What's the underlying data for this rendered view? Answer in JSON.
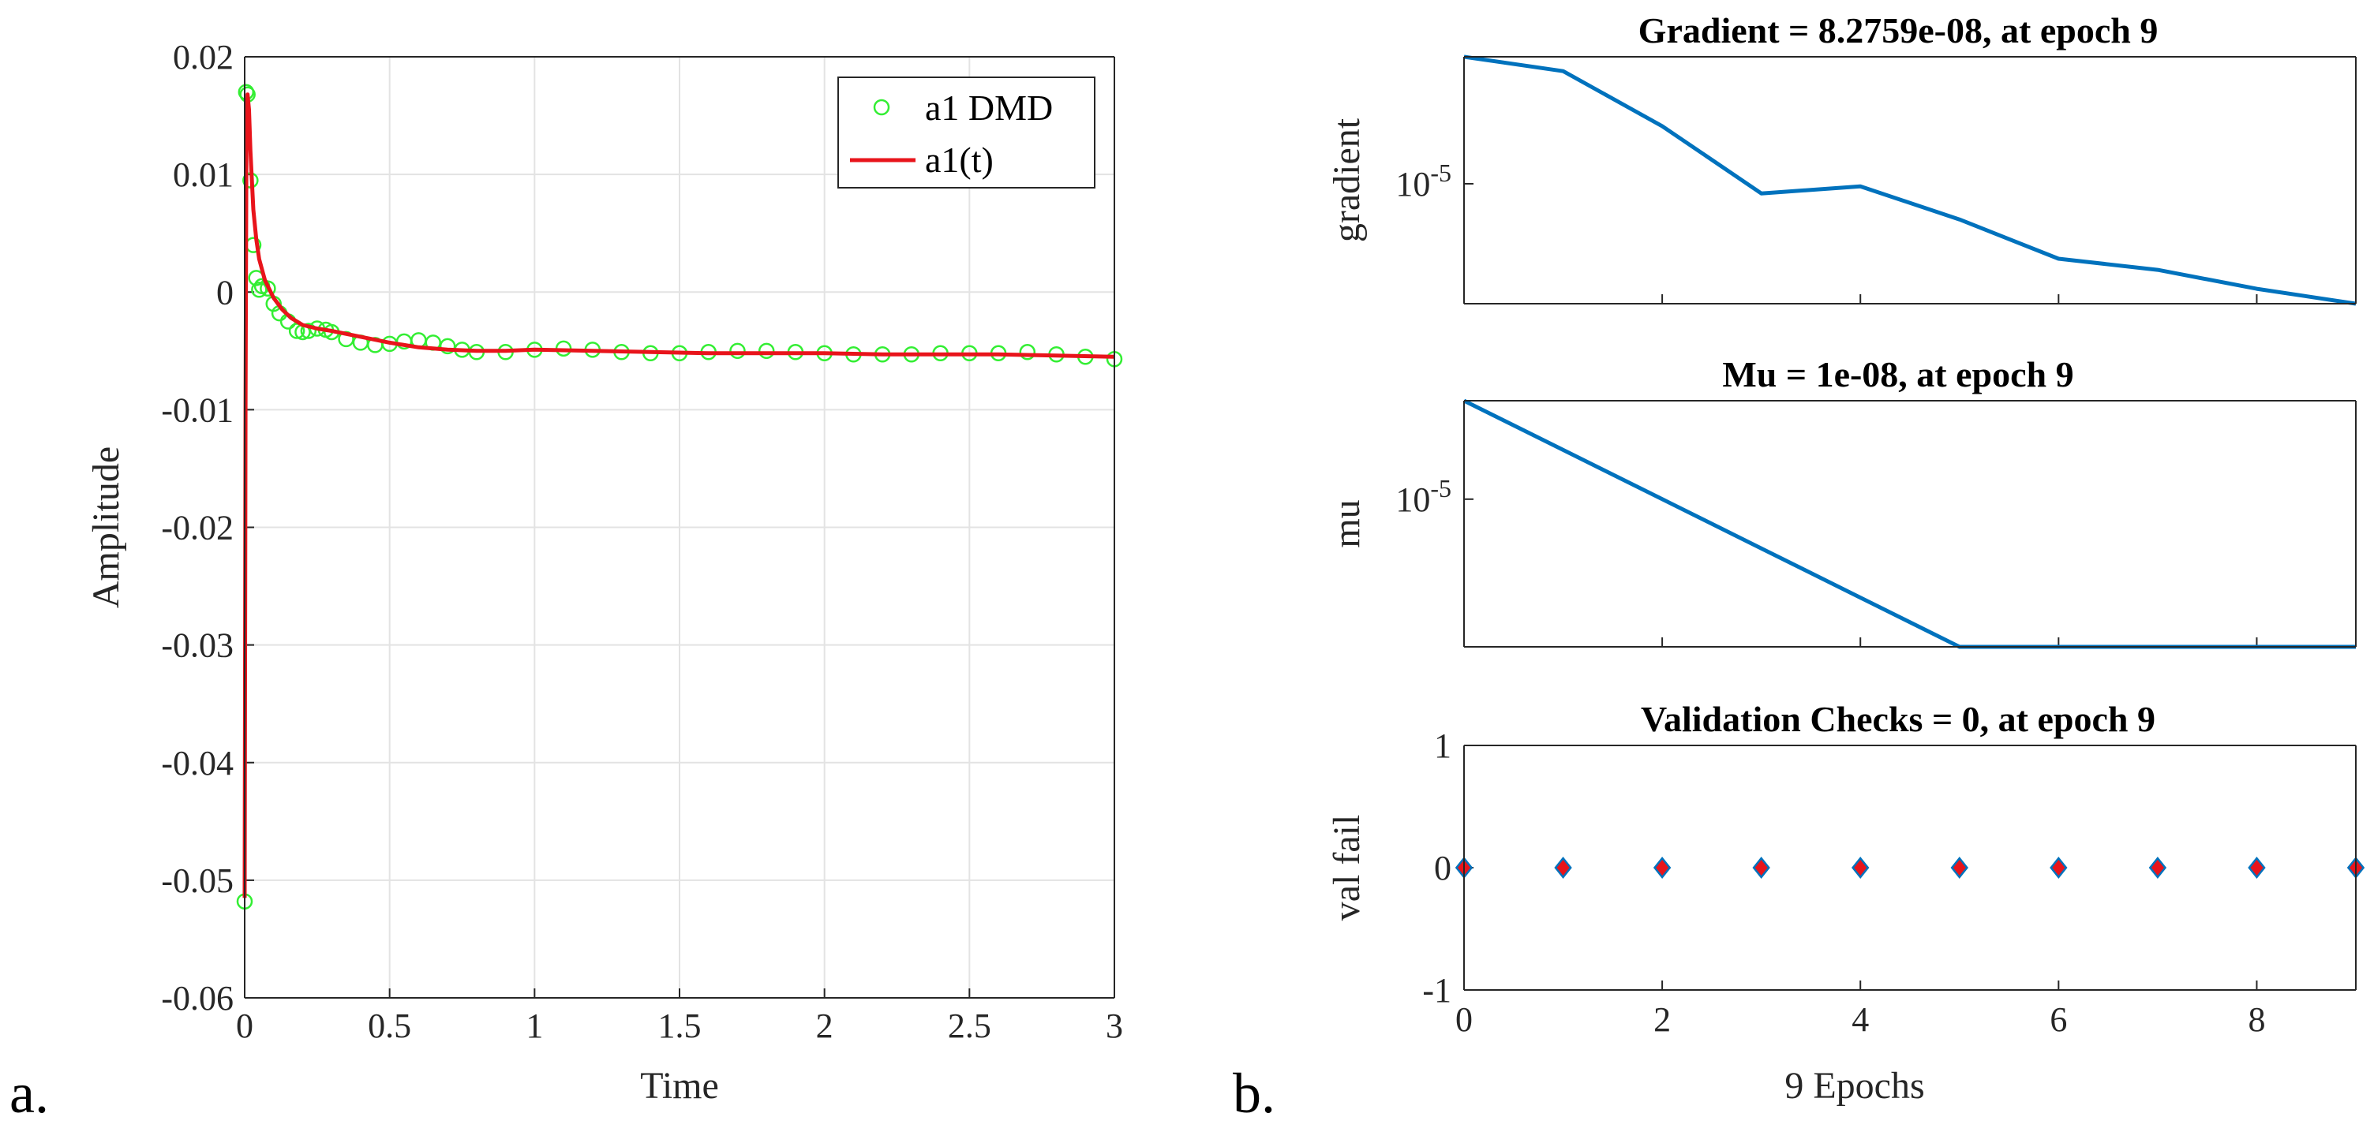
{
  "figure": {
    "panel_a_label": "a.",
    "panel_b_label": "b."
  },
  "chart_data": [
    {
      "id": "amplitude",
      "type": "line",
      "title": "",
      "xlabel": "Time",
      "ylabel": "Amplitude",
      "xlim": [
        0,
        3
      ],
      "ylim": [
        -0.06,
        0.02
      ],
      "xticks": [
        0,
        0.5,
        1,
        1.5,
        2,
        2.5,
        3
      ],
      "xtick_labels": [
        "0",
        "0.5",
        "1",
        "1.5",
        "2",
        "2.5",
        "3"
      ],
      "yticks": [
        0.02,
        0.01,
        0,
        -0.01,
        -0.02,
        -0.03,
        -0.04,
        -0.05,
        -0.06
      ],
      "ytick_labels": [
        "0.02",
        "0.01",
        "0",
        "-0.01",
        "-0.02",
        "-0.03",
        "-0.04",
        "-0.05",
        "-0.06"
      ],
      "grid": true,
      "legend_position": "top-right",
      "series": [
        {
          "name": "a1 DMD",
          "style": "circles",
          "color": "#33ee33",
          "x": [
            0,
            0.005,
            0.01,
            0.02,
            0.03,
            0.04,
            0.05,
            0.06,
            0.08,
            0.1,
            0.12,
            0.15,
            0.18,
            0.2,
            0.22,
            0.25,
            0.28,
            0.3,
            0.35,
            0.4,
            0.45,
            0.5,
            0.55,
            0.6,
            0.65,
            0.7,
            0.75,
            0.8,
            0.9,
            1.0,
            1.1,
            1.2,
            1.3,
            1.4,
            1.5,
            1.6,
            1.7,
            1.8,
            1.9,
            2.0,
            2.1,
            2.2,
            2.3,
            2.4,
            2.5,
            2.6,
            2.7,
            2.8,
            2.9,
            3.0
          ],
          "y": [
            -0.0518,
            0.017,
            0.0168,
            0.0095,
            0.004,
            0.0012,
            0.0002,
            0.0005,
            0.0003,
            -0.001,
            -0.0018,
            -0.0025,
            -0.0033,
            -0.0034,
            -0.0033,
            -0.0031,
            -0.0032,
            -0.0034,
            -0.004,
            -0.0043,
            -0.0045,
            -0.0044,
            -0.0042,
            -0.0041,
            -0.0043,
            -0.0046,
            -0.0049,
            -0.0051,
            -0.0051,
            -0.0049,
            -0.0048,
            -0.0049,
            -0.0051,
            -0.0052,
            -0.0052,
            -0.0051,
            -0.005,
            -0.005,
            -0.0051,
            -0.0052,
            -0.0053,
            -0.0053,
            -0.0053,
            -0.0052,
            -0.0052,
            -0.0052,
            -0.0051,
            -0.0053,
            -0.0055,
            -0.0057
          ]
        },
        {
          "name": "a1(t)",
          "style": "line",
          "color": "#e8141b",
          "x": [
            0,
            0.003,
            0.006,
            0.01,
            0.015,
            0.02,
            0.03,
            0.04,
            0.05,
            0.07,
            0.1,
            0.13,
            0.16,
            0.2,
            0.25,
            0.3,
            0.4,
            0.5,
            0.6,
            0.7,
            0.8,
            0.9,
            1.0,
            1.2,
            1.4,
            1.6,
            1.8,
            2.0,
            2.2,
            2.4,
            2.6,
            2.8,
            3.0
          ],
          "y": [
            -0.0515,
            -0.01,
            0.012,
            0.0168,
            0.0155,
            0.012,
            0.007,
            0.0045,
            0.0028,
            0.001,
            -0.0005,
            -0.0015,
            -0.0022,
            -0.0028,
            -0.0031,
            -0.0033,
            -0.0038,
            -0.0043,
            -0.0047,
            -0.0049,
            -0.005,
            -0.005,
            -0.0049,
            -0.005,
            -0.0051,
            -0.0052,
            -0.0052,
            -0.0052,
            -0.0053,
            -0.0053,
            -0.0053,
            -0.0054,
            -0.0055
          ]
        }
      ]
    },
    {
      "id": "gradient",
      "type": "line",
      "yscale": "log",
      "title": "Gradient = 8.2759e-08, at epoch 9",
      "xlabel": "",
      "ylabel": "gradient",
      "xlim": [
        0,
        9
      ],
      "ylim": [
        8.2759e-08,
        0.0016
      ],
      "xticks": [
        0,
        2,
        4,
        6,
        8
      ],
      "yticks": [
        1e-05
      ],
      "ytick_labels": [
        "10-5"
      ],
      "series": [
        {
          "name": "gradient",
          "color": "#0072bd",
          "x": [
            0,
            1,
            2,
            3,
            4,
            5,
            6,
            7,
            8,
            9
          ],
          "y": [
            0.0016,
            0.0009,
            0.0001,
            6.8e-06,
            9e-06,
            2.4e-06,
            5e-07,
            3.2e-07,
            1.5e-07,
            8.2759e-08
          ]
        }
      ]
    },
    {
      "id": "mu",
      "type": "line",
      "yscale": "log",
      "title": "Mu = 1e-08, at epoch 9",
      "xlabel": "",
      "ylabel": "mu",
      "xlim": [
        0,
        9
      ],
      "ylim": [
        1e-08,
        0.001
      ],
      "xticks": [
        0,
        2,
        4,
        6,
        8
      ],
      "yticks": [
        1e-05
      ],
      "ytick_labels": [
        "10-5"
      ],
      "series": [
        {
          "name": "mu",
          "color": "#0072bd",
          "x": [
            0,
            1,
            2,
            3,
            4,
            5,
            6,
            7,
            8,
            9
          ],
          "y": [
            0.001,
            0.0001,
            1e-05,
            1e-06,
            1e-07,
            1e-08,
            1e-08,
            1e-08,
            1e-08,
            1e-08
          ]
        }
      ]
    },
    {
      "id": "val_fail",
      "type": "scatter",
      "title": "Validation Checks = 0, at epoch 9",
      "xlabel": "9 Epochs",
      "ylabel": "val fail",
      "xlim": [
        0,
        9
      ],
      "ylim": [
        -1,
        1
      ],
      "xticks": [
        0,
        2,
        4,
        6,
        8
      ],
      "xtick_labels": [
        "0",
        "2",
        "4",
        "6",
        "8"
      ],
      "yticks": [
        1,
        0,
        -1
      ],
      "ytick_labels": [
        "1",
        "0",
        "-1"
      ],
      "series": [
        {
          "name": "val fail",
          "marker": "diamond",
          "fill": "#e8141b",
          "edge": "#0072bd",
          "x": [
            0,
            1,
            2,
            3,
            4,
            5,
            6,
            7,
            8,
            9
          ],
          "y": [
            0,
            0,
            0,
            0,
            0,
            0,
            0,
            0,
            0,
            0
          ]
        }
      ]
    }
  ]
}
